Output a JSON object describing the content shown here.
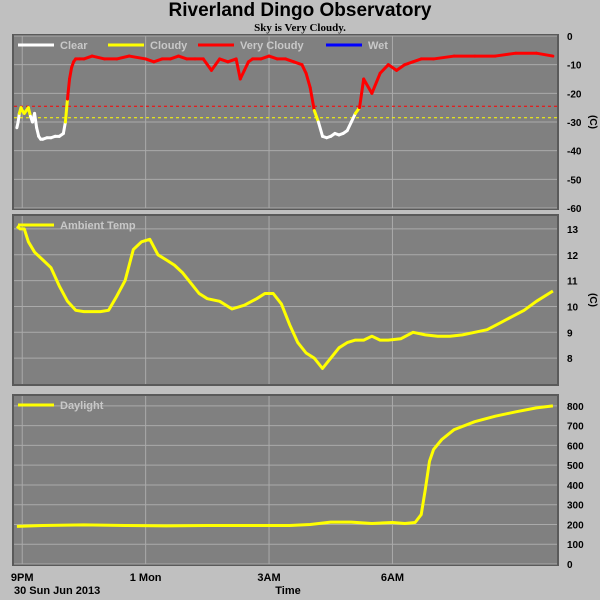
{
  "page": {
    "title": "Riverland Dingo Observatory",
    "subtitle": "Sky is Very Cloudy."
  },
  "chart_data": [
    {
      "type": "line",
      "panel": "sky",
      "ylabel": "(C)",
      "ylim": [
        -60,
        0
      ],
      "yticks": [
        0,
        -10,
        -20,
        -30,
        -40,
        -50,
        -60
      ],
      "grid": true,
      "legend_position": "top-left",
      "legend": [
        {
          "name": "Clear",
          "color": "#ffffff"
        },
        {
          "name": "Cloudy",
          "color": "#ffff00"
        },
        {
          "name": "Very Cloudy",
          "color": "#ff0000"
        },
        {
          "name": "Wet",
          "color": "#0000ff"
        }
      ],
      "thresholds": [
        {
          "value": -24.5,
          "color": "#ff0000"
        },
        {
          "value": -28.5,
          "color": "#ffff00"
        }
      ],
      "x": [
        20.87,
        20.9,
        20.93,
        20.97,
        21.0,
        21.05,
        21.1,
        21.15,
        21.2,
        21.25,
        21.3,
        21.35,
        21.4,
        21.45,
        21.5,
        21.6,
        21.7,
        21.8,
        21.9,
        22.0,
        22.05,
        22.1,
        22.15,
        22.2,
        22.25,
        22.3,
        22.4,
        22.5,
        22.7,
        23.0,
        23.3,
        23.6,
        24.0,
        24.2,
        24.4,
        24.6,
        24.8,
        25.0,
        25.2,
        25.4,
        25.6,
        25.8,
        26.0,
        26.2,
        26.3,
        26.4,
        26.5,
        26.6,
        26.8,
        27.0,
        27.2,
        27.4,
        27.6,
        27.8,
        27.9,
        28.0,
        28.1,
        28.2,
        28.3,
        28.4,
        28.5,
        28.6,
        28.7,
        28.8,
        28.9,
        29.0,
        29.1,
        29.2,
        29.3,
        29.5,
        29.7,
        29.9,
        30.1,
        30.3,
        30.5,
        30.7,
        31.0,
        31.5,
        32.0,
        32.5,
        33.0,
        33.5,
        33.9
      ],
      "series": [
        {
          "values": [
            -32,
            -30,
            -27,
            -25,
            -26,
            -27,
            -26,
            -25,
            -28,
            -30,
            -27,
            -32,
            -35,
            -36,
            -36,
            -35.5,
            -35.5,
            -35,
            -35,
            -34,
            -30,
            -22,
            -15,
            -11,
            -9,
            -8,
            -8,
            -8,
            -7,
            -8,
            -8,
            -7,
            -8,
            -9,
            -8,
            -8,
            -7,
            -8,
            -8,
            -8,
            -12,
            -8,
            -9,
            -8,
            -15,
            -12,
            -9,
            -8,
            -8,
            -7,
            -8,
            -8,
            -9,
            -10,
            -13,
            -18,
            -26,
            -30,
            -35,
            -35.5,
            -35,
            -34,
            -34.5,
            -34,
            -33,
            -30,
            -27,
            -25,
            -15,
            -20,
            -13,
            -10,
            -12,
            -10,
            -9,
            -8,
            -8,
            -7,
            -7,
            -7,
            -6,
            -6,
            -7
          ]
        }
      ]
    },
    {
      "type": "line",
      "panel": "ambient",
      "ylabel": "(C)",
      "ylim": [
        7,
        13.5
      ],
      "yticks": [
        13,
        12,
        11,
        10,
        9,
        8
      ],
      "grid": true,
      "legend_position": "top-left",
      "legend": [
        {
          "name": "Ambient Temp",
          "color": "#ffff00"
        }
      ],
      "x": [
        20.87,
        20.95,
        21.05,
        21.15,
        21.3,
        21.5,
        21.7,
        21.9,
        22.1,
        22.3,
        22.5,
        22.7,
        22.9,
        23.1,
        23.3,
        23.5,
        23.7,
        23.9,
        24.1,
        24.3,
        24.5,
        24.7,
        24.9,
        25.1,
        25.3,
        25.5,
        25.8,
        26.1,
        26.4,
        26.7,
        26.9,
        27.1,
        27.3,
        27.5,
        27.7,
        27.9,
        28.1,
        28.3,
        28.5,
        28.7,
        28.9,
        29.1,
        29.3,
        29.5,
        29.7,
        29.9,
        30.2,
        30.5,
        30.8,
        31.1,
        31.4,
        31.7,
        32.0,
        32.3,
        32.6,
        32.9,
        33.2,
        33.5,
        33.9
      ],
      "series": [
        {
          "values": [
            13.1,
            13.0,
            13.0,
            12.5,
            12.1,
            11.8,
            11.5,
            10.8,
            10.2,
            9.85,
            9.8,
            9.8,
            9.8,
            9.85,
            10.4,
            11.0,
            12.2,
            12.5,
            12.6,
            12.0,
            11.8,
            11.6,
            11.3,
            10.9,
            10.5,
            10.3,
            10.2,
            9.9,
            10.05,
            10.3,
            10.5,
            10.5,
            10.1,
            9.3,
            8.6,
            8.2,
            8.0,
            7.6,
            8.0,
            8.4,
            8.6,
            8.7,
            8.7,
            8.85,
            8.7,
            8.7,
            8.75,
            9.0,
            8.9,
            8.85,
            8.85,
            8.9,
            9.0,
            9.1,
            9.35,
            9.6,
            9.85,
            10.2,
            10.6
          ]
        }
      ]
    },
    {
      "type": "line",
      "panel": "daylight",
      "ylim": [
        0,
        850
      ],
      "yticks": [
        800,
        700,
        600,
        500,
        400,
        300,
        200,
        100,
        0
      ],
      "grid": true,
      "legend_position": "top-left",
      "legend": [
        {
          "name": "Daylight",
          "color": "#ffff00"
        }
      ],
      "xlabel": "Time",
      "xlim": [
        20.8,
        34.0
      ],
      "xticks": [
        {
          "x": 21,
          "label": "9PM"
        },
        {
          "x": 24,
          "label": "1 Mon"
        },
        {
          "x": 27,
          "label": "3AM"
        },
        {
          "x": 30,
          "label": "6AM"
        }
      ],
      "date_label": "30 Sun Jun 2013",
      "x": [
        20.87,
        21.5,
        22.5,
        23.5,
        24.5,
        25.5,
        26.5,
        27.5,
        28.0,
        28.5,
        29.0,
        29.5,
        30.0,
        30.3,
        30.55,
        30.7,
        30.8,
        30.9,
        31.0,
        31.2,
        31.5,
        32.0,
        32.5,
        33.0,
        33.5,
        33.9
      ],
      "series": [
        {
          "values": [
            190,
            195,
            198,
            195,
            193,
            195,
            195,
            195,
            200,
            212,
            212,
            205,
            210,
            205,
            210,
            250,
            380,
            520,
            580,
            630,
            680,
            720,
            748,
            770,
            790,
            800
          ]
        }
      ]
    }
  ]
}
